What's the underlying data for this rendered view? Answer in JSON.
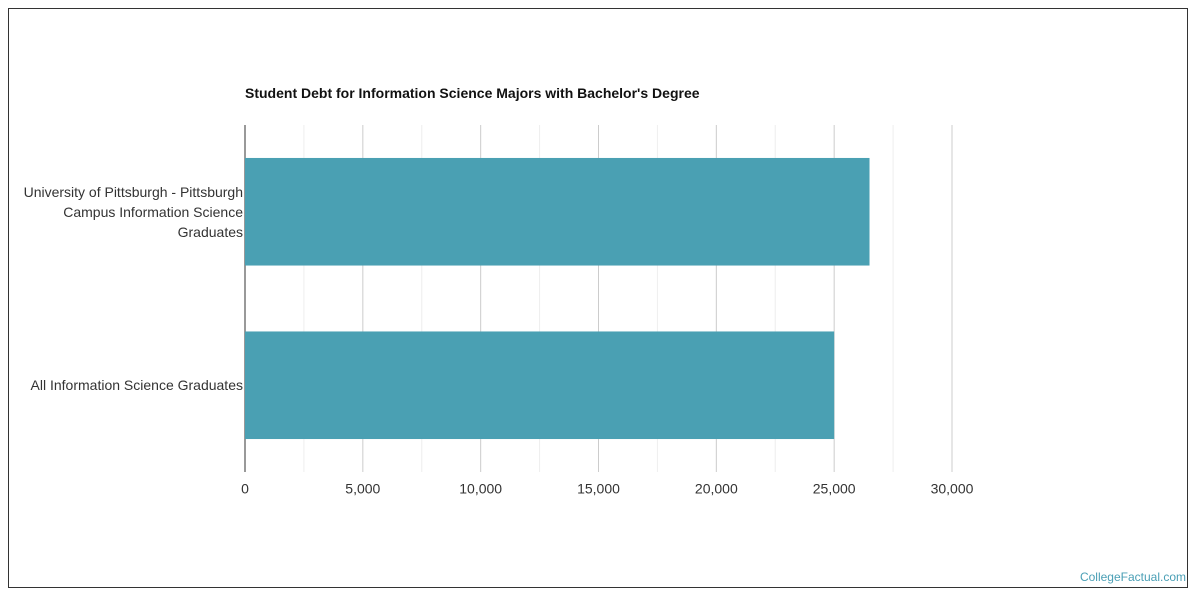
{
  "chart_data": {
    "type": "bar",
    "orientation": "horizontal",
    "title": "Student Debt for Information Science Majors with Bachelor's Degree",
    "categories": [
      "University of Pittsburgh - Pittsburgh Campus Information Science Graduates",
      "All Information Science Graduates"
    ],
    "values": [
      26500,
      25000
    ],
    "color": "#4aa0b3",
    "xlim": [
      0,
      30000
    ],
    "xticks": [
      0,
      {
        "value": 5000,
        "label": "5,000"
      },
      {
        "value": 10000,
        "label": "10,000"
      },
      {
        "value": 15000,
        "label": "15,000"
      },
      {
        "value": 20000,
        "label": "20,000"
      },
      {
        "value": 25000,
        "label": "25,000"
      },
      {
        "value": 30000,
        "label": "30,000"
      }
    ],
    "minor_xticks": [
      2500,
      7500,
      12500,
      17500,
      22500,
      27500
    ],
    "grid": true,
    "source": "CollegeFactual.com"
  }
}
